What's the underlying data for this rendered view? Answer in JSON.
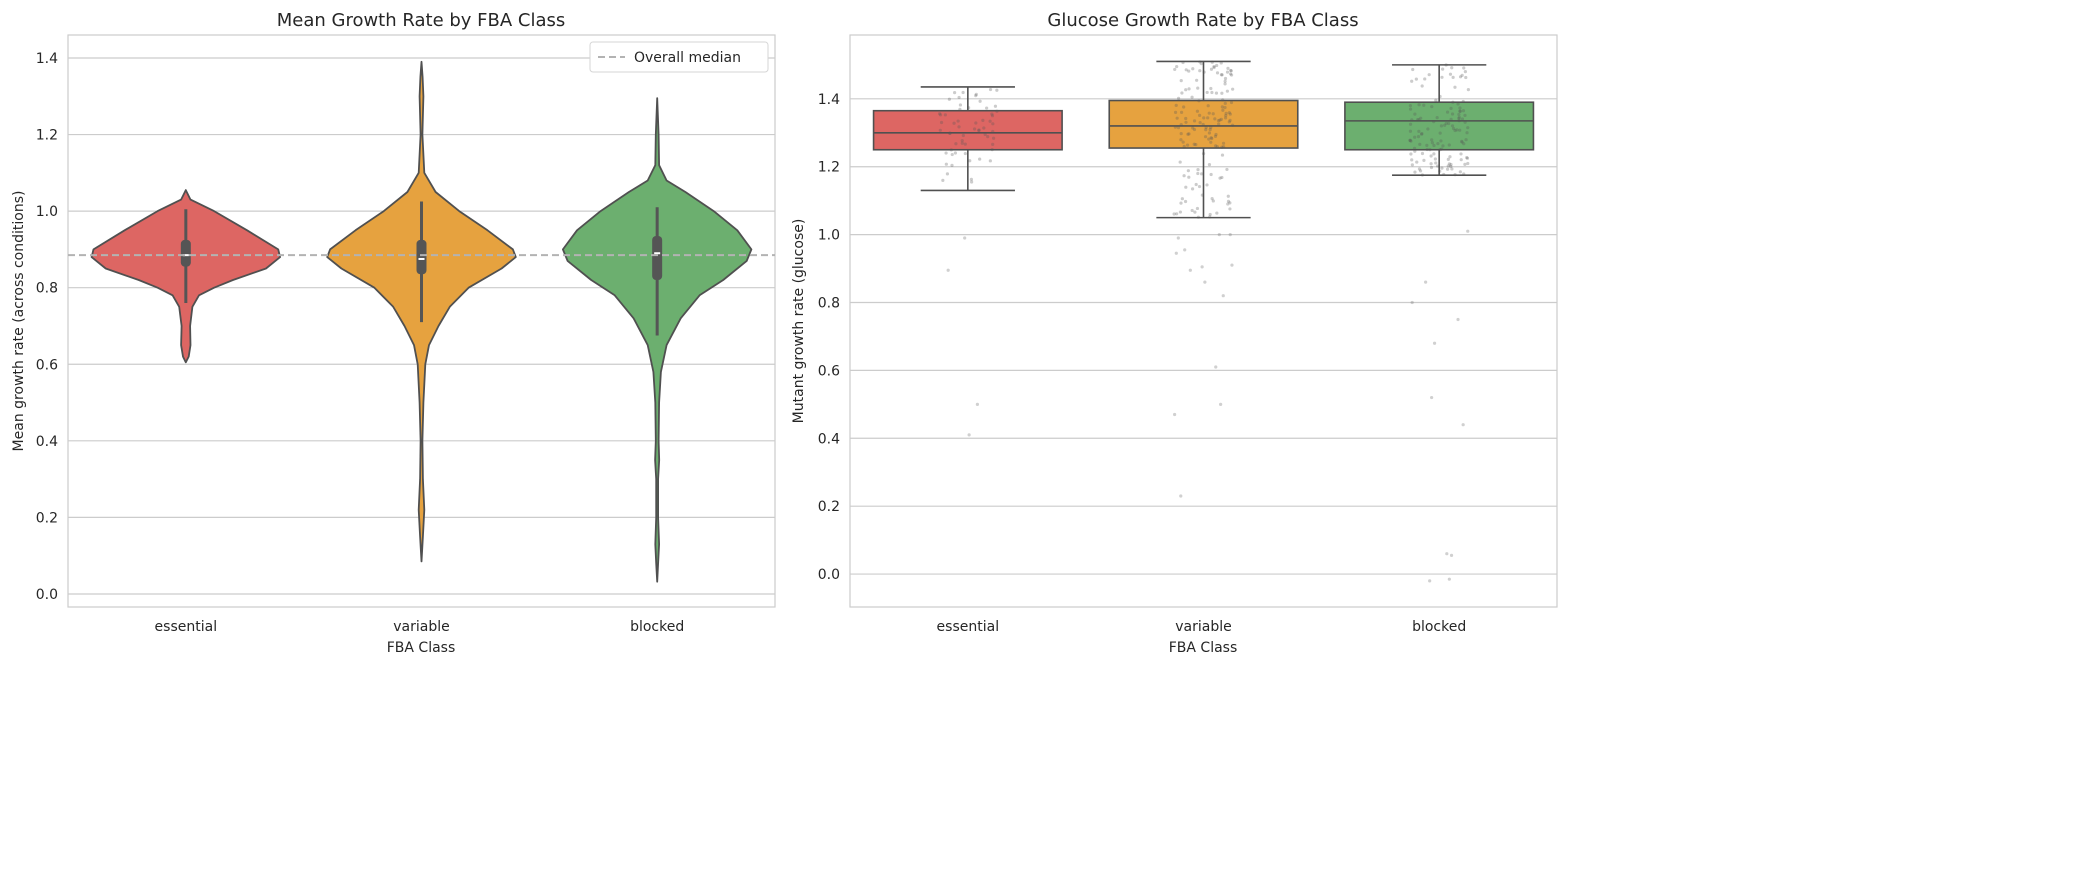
{
  "chart_data": [
    {
      "type": "violin",
      "title": "Mean Growth Rate by FBA Class",
      "xlabel": "FBA Class",
      "ylabel": "Mean growth rate (across conditions)",
      "categories": [
        "essential",
        "variable",
        "blocked"
      ],
      "colors": [
        "#dd6663",
        "#e6a23f",
        "#6caf6f"
      ],
      "ylim": [
        -0.034,
        1.46
      ],
      "yticks": [
        "0.0",
        "0.2",
        "0.4",
        "0.6",
        "0.8",
        "1.0",
        "1.2",
        "1.4"
      ],
      "grid": true,
      "reference_line": {
        "label": "Overall median",
        "value": 0.885,
        "color": "#b3b3b3"
      },
      "legend": {
        "placement": "top-right",
        "entries": [
          "Overall median"
        ]
      },
      "series": [
        {
          "category": "essential",
          "whisker_low": 0.76,
          "q1": 0.855,
          "median": 0.885,
          "q3": 0.925,
          "whisker_high": 1.005,
          "density": [
            [
              1.055,
              0
            ],
            [
              1.03,
              0.05
            ],
            [
              1.0,
              0.3
            ],
            [
              0.95,
              0.65
            ],
            [
              0.9,
              0.98
            ],
            [
              0.88,
              1.0
            ],
            [
              0.85,
              0.85
            ],
            [
              0.82,
              0.5
            ],
            [
              0.8,
              0.3
            ],
            [
              0.78,
              0.14
            ],
            [
              0.75,
              0.07
            ],
            [
              0.7,
              0.045
            ],
            [
              0.65,
              0.05
            ],
            [
              0.62,
              0.03
            ],
            [
              0.605,
              0
            ]
          ]
        },
        {
          "category": "variable",
          "whisker_low": 0.71,
          "q1": 0.835,
          "median": 0.875,
          "q3": 0.925,
          "whisker_high": 1.025,
          "density": [
            [
              1.39,
              0
            ],
            [
              1.35,
              0.012
            ],
            [
              1.3,
              0.02
            ],
            [
              1.2,
              0.01
            ],
            [
              1.1,
              0.03
            ],
            [
              1.05,
              0.15
            ],
            [
              1.0,
              0.4
            ],
            [
              0.95,
              0.7
            ],
            [
              0.9,
              0.97
            ],
            [
              0.88,
              1.0
            ],
            [
              0.85,
              0.85
            ],
            [
              0.8,
              0.5
            ],
            [
              0.75,
              0.3
            ],
            [
              0.7,
              0.18
            ],
            [
              0.65,
              0.08
            ],
            [
              0.6,
              0.04
            ],
            [
              0.5,
              0.02
            ],
            [
              0.4,
              0.01
            ],
            [
              0.3,
              0.015
            ],
            [
              0.22,
              0.03
            ],
            [
              0.15,
              0.015
            ],
            [
              0.085,
              0
            ]
          ]
        },
        {
          "category": "blocked",
          "whisker_low": 0.675,
          "q1": 0.82,
          "median": 0.89,
          "q3": 0.935,
          "whisker_high": 1.01,
          "density": [
            [
              1.295,
              0
            ],
            [
              1.2,
              0.015
            ],
            [
              1.12,
              0.02
            ],
            [
              1.08,
              0.1
            ],
            [
              1.05,
              0.3
            ],
            [
              1.0,
              0.6
            ],
            [
              0.95,
              0.85
            ],
            [
              0.9,
              1.0
            ],
            [
              0.87,
              0.95
            ],
            [
              0.82,
              0.7
            ],
            [
              0.78,
              0.45
            ],
            [
              0.72,
              0.25
            ],
            [
              0.65,
              0.1
            ],
            [
              0.58,
              0.04
            ],
            [
              0.5,
              0.02
            ],
            [
              0.4,
              0.015
            ],
            [
              0.35,
              0.022
            ],
            [
              0.3,
              0.01
            ],
            [
              0.2,
              0.01
            ],
            [
              0.13,
              0.02
            ],
            [
              0.08,
              0.01
            ],
            [
              0.032,
              0
            ]
          ]
        }
      ]
    },
    {
      "type": "box",
      "title": "Glucose Growth Rate by FBA Class",
      "xlabel": "FBA Class",
      "ylabel": "Mutant growth rate (glucose)",
      "categories": [
        "essential",
        "variable",
        "blocked"
      ],
      "colors": [
        "#dd6663",
        "#e6a23f",
        "#6caf6f"
      ],
      "ylim": [
        -0.097,
        1.588
      ],
      "yticks": [
        "0.0",
        "0.2",
        "0.4",
        "0.6",
        "0.8",
        "1.0",
        "1.2",
        "1.4"
      ],
      "grid": true,
      "overlay": "jittered strip points (gray)",
      "series": [
        {
          "category": "essential",
          "whisker_low": 1.13,
          "q1": 1.25,
          "median": 1.3,
          "q3": 1.365,
          "whisker_high": 1.435,
          "outliers": [
            0.99,
            0.895,
            0.5,
            0.41
          ]
        },
        {
          "category": "variable",
          "whisker_low": 1.05,
          "q1": 1.255,
          "median": 1.32,
          "q3": 1.395,
          "whisker_high": 1.51,
          "outliers": [
            1.09,
            1.0,
            1.0,
            0.99,
            0.955,
            0.945,
            0.91,
            0.905,
            0.895,
            0.86,
            0.82,
            0.61,
            0.5,
            0.47,
            0.23
          ]
        },
        {
          "category": "blocked",
          "whisker_low": 1.175,
          "q1": 1.25,
          "median": 1.335,
          "q3": 1.39,
          "whisker_high": 1.5,
          "outliers": [
            1.01,
            0.86,
            0.8,
            0.75,
            0.68,
            0.52,
            0.44,
            0.06,
            0.055,
            -0.015,
            -0.02
          ]
        }
      ]
    }
  ]
}
